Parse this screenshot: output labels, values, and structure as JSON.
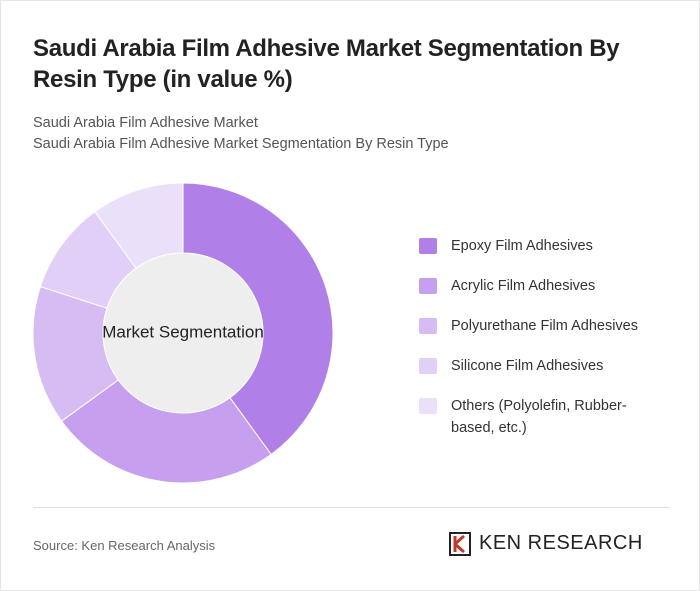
{
  "chart_data": {
    "type": "donut",
    "title": "Saudi Arabia Film Adhesive Market Segmentation By Resin Type (in value %)",
    "subtitles": [
      "Saudi Arabia Film Adhesive Market",
      "Saudi Arabia Film Adhesive Market Segmentation By Resin Type"
    ],
    "center_label": "Market Segmentation",
    "categories": [
      "Epoxy Film Adhesives",
      "Acrylic Film Adhesives",
      "Polyurethane Film Adhesives",
      "Silicone Film Adhesives",
      "Others (Polyolefin, Rubber-based, etc.)"
    ],
    "values": [
      40,
      25,
      15,
      10,
      10
    ],
    "colors": [
      "#b07fe8",
      "#c6a0ef",
      "#d7bcf4",
      "#e2cff7",
      "#ebe0f9"
    ],
    "source": "Source: Ken Research Analysis",
    "brand": "KEN RESEARCH"
  }
}
